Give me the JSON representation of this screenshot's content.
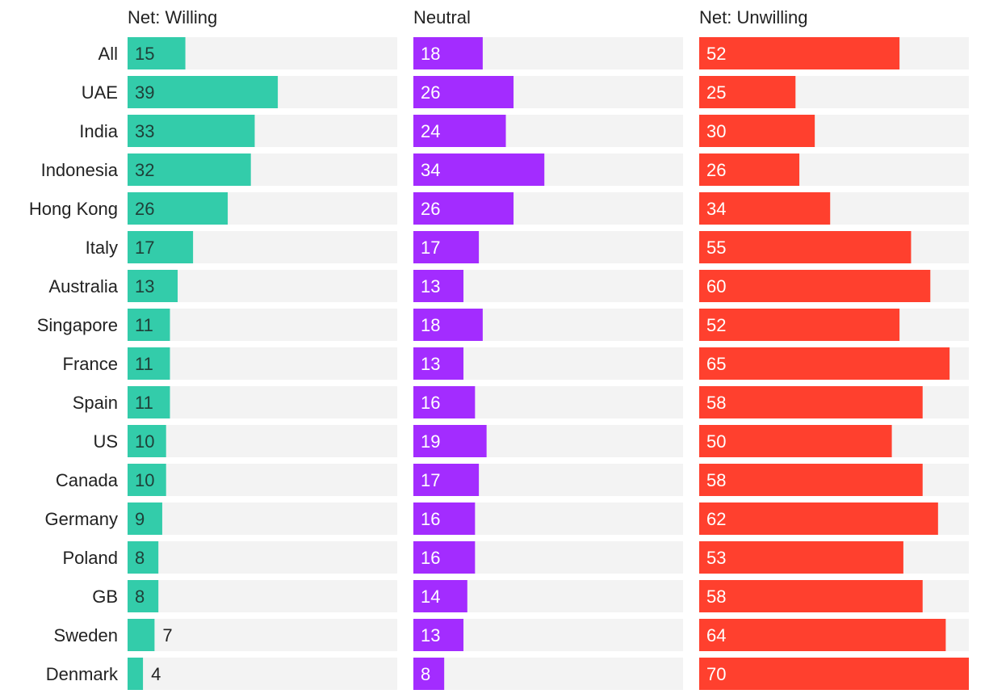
{
  "chart_data": {
    "type": "bar",
    "orientation": "horizontal",
    "layout": "small-multiples",
    "categories": [
      "All",
      "UAE",
      "India",
      "Indonesia",
      "Hong Kong",
      "Italy",
      "Australia",
      "Singapore",
      "France",
      "Spain",
      "US",
      "Canada",
      "Germany",
      "Poland",
      "GB",
      "Sweden",
      "Denmark"
    ],
    "xlim": [
      0,
      70
    ],
    "series": [
      {
        "name": "Net: Willing",
        "color": "#33ccaa",
        "label_color": "#1f3f38",
        "values": [
          15,
          39,
          33,
          32,
          26,
          17,
          13,
          11,
          11,
          11,
          10,
          10,
          9,
          8,
          8,
          7,
          4
        ]
      },
      {
        "name": "Neutral",
        "color": "#a32cff",
        "label_color": "#ffffff",
        "values": [
          18,
          26,
          24,
          34,
          26,
          17,
          13,
          18,
          13,
          16,
          19,
          17,
          16,
          16,
          14,
          13,
          8
        ]
      },
      {
        "name": "Net: Unwilling",
        "color": "#ff402e",
        "label_color": "#ffffff",
        "values": [
          52,
          25,
          30,
          26,
          34,
          55,
          60,
          52,
          65,
          58,
          50,
          58,
          62,
          53,
          58,
          64,
          70
        ]
      }
    ],
    "track_color": "#f3f3f3",
    "title": "",
    "xlabel": "",
    "ylabel": "",
    "grid": false,
    "legend": "none"
  }
}
